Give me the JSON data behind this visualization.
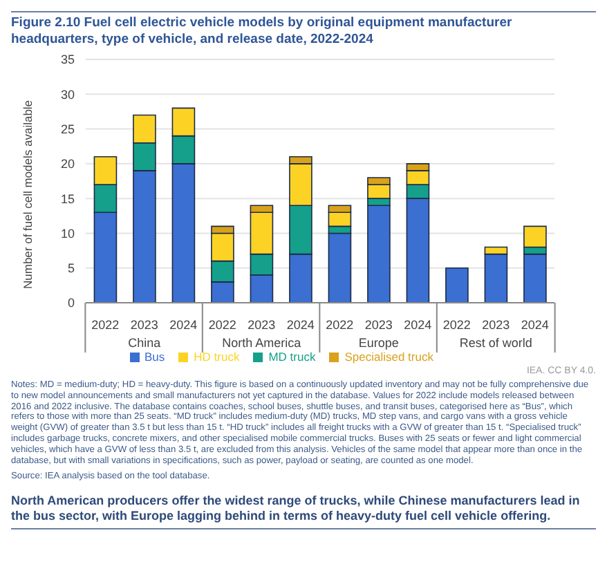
{
  "chart_data": {
    "type": "bar",
    "title": "Figure 2.10  Fuel cell electric vehicle models by original equipment manufacturer headquarters, type of vehicle, and release date, 2022-2024",
    "ylabel": "Number of fuel cell models available",
    "categories": [
      "2022",
      "2023",
      "2024",
      "2022",
      "2023",
      "2024",
      "2022",
      "2023",
      "2024",
      "2022",
      "2023",
      "2024"
    ],
    "stacked": true,
    "series": [
      {
        "name": "Bus",
        "color": "#3b6fd1",
        "values": [
          13,
          19,
          20,
          3,
          4,
          7,
          10,
          14,
          15,
          5,
          7,
          7
        ]
      },
      {
        "name": "MD truck",
        "color": "#14a08b",
        "values": [
          4,
          4,
          4,
          3,
          3,
          7,
          1,
          1,
          2,
          0,
          0,
          1
        ]
      },
      {
        "name": "HD truck",
        "color": "#fcd325",
        "values": [
          4,
          4,
          4,
          4,
          6,
          6,
          2,
          2,
          2,
          0,
          1,
          3
        ]
      },
      {
        "name": "Specialised truck",
        "color": "#d9a21b",
        "values": [
          0,
          0,
          0,
          1,
          1,
          1,
          1,
          1,
          1,
          0,
          0,
          0
        ]
      }
    ],
    "ylim": [
      0,
      35
    ],
    "yticks": [
      0,
      5,
      10,
      15,
      20,
      25,
      30,
      35
    ],
    "grid": "y",
    "legend": "bottom",
    "annotations": [
      "China",
      "North America",
      "Europe",
      "Rest of world",
      "IEA. CC BY 4.0.",
      "Notes: MD = medium-duty; HD = heavy-duty. This figure is based on a continuously updated inventory and may not be fully comprehensive due to new model announcements and small manufacturers not yet captured in the database. Values for 2022 include models released between 2016 and 2022 inclusive. The database contains coaches, school buses, shuttle buses, and transit buses, categorised here as “Bus”, which refers to those with more than 25 seats. “MD truck” includes medium-duty (MD) trucks, MD step vans, and cargo vans with a gross vehicle weight (GVW) of greater than 3.5 t but less than 15 t. “HD truck” includes all freight trucks with a GVW of greater than 15 t. “Specialised truck” includes garbage trucks, concrete mixers, and other specialised mobile commercial trucks. Buses with 25 seats or fewer and light commercial vehicles, which have a GVW of less than 3.5 t, are excluded from this analysis. Vehicles of the same model that appear more than once in the database, but with small variations in specifications, such as power, payload or seating, are counted as one model.",
      "Source: IEA analysis based on the tool database.",
      "North American producers offer the widest range of trucks, while Chinese manufacturers lead in the bus sector, with Europe lagging behind in terms of heavy-duty fuel cell vehicle offering."
    ]
  }
}
